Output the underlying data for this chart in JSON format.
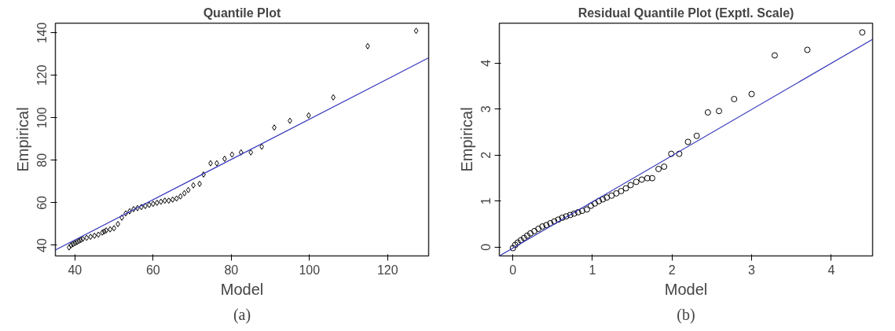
{
  "chart_data": [
    {
      "type": "scatter",
      "title": "Quantile Plot",
      "xlabel": "Model",
      "ylabel": "Empirical",
      "annotations": [
        "(a)"
      ],
      "xlim": [
        35,
        130.5
      ],
      "ylim": [
        35,
        144.5
      ],
      "xticks": [
        40,
        60,
        80,
        100,
        120
      ],
      "yticks": [
        40,
        60,
        80,
        100,
        120,
        140
      ],
      "grid": false,
      "series": [
        {
          "marker": "diamond",
          "color": "#000000",
          "x": [
            38.5,
            39,
            39.5,
            40,
            40.5,
            41,
            41.5,
            42,
            43,
            44,
            45,
            46,
            47,
            47.5,
            48,
            49,
            50,
            51,
            52,
            53,
            54,
            55,
            56,
            57,
            58,
            59,
            60,
            61,
            62,
            63,
            64,
            65,
            66,
            67,
            68,
            69,
            70.3,
            71.9,
            72.9,
            74.7,
            76.3,
            78.3,
            80.2,
            82.5,
            85.0,
            87.8,
            91.0,
            95.0,
            99.8,
            106.1,
            114.9,
            127.3
          ],
          "values": [
            39,
            40,
            40.5,
            41,
            41.5,
            42,
            42.5,
            43,
            43.5,
            44,
            44.5,
            45,
            46,
            46.5,
            47,
            47.5,
            48,
            50,
            53,
            55,
            56,
            57,
            57.5,
            58,
            58.5,
            59,
            59.5,
            60,
            60.5,
            61,
            61,
            61.5,
            62,
            63,
            64.5,
            66,
            68.2,
            68.9,
            73.3,
            78.6,
            78.6,
            80.7,
            82.7,
            83.7,
            83.7,
            86.4,
            95.4,
            98.6,
            101.1,
            109.6,
            133.7,
            140.9
          ]
        },
        {
          "type": "line",
          "color": "#3333bb",
          "x": [
            35,
            130.5
          ],
          "values": [
            37.8,
            128.2
          ]
        }
      ]
    },
    {
      "type": "scatter",
      "title": "Residual Quantile Plot (Exptl. Scale)",
      "xlabel": "Model",
      "ylabel": "Empirical",
      "annotations": [
        "(b)"
      ],
      "xlim": [
        -0.17,
        4.52
      ],
      "ylim": [
        -0.19,
        4.87
      ],
      "xticks": [
        0,
        1,
        2,
        3,
        4
      ],
      "yticks": [
        0,
        1,
        2,
        3,
        4
      ],
      "grid": false,
      "series": [
        {
          "marker": "circle",
          "color": "#000000",
          "x": [
            0,
            0.03,
            0.06,
            0.1,
            0.14,
            0.18,
            0.22,
            0.27,
            0.32,
            0.37,
            0.42,
            0.47,
            0.52,
            0.57,
            0.62,
            0.67,
            0.72,
            0.77,
            0.82,
            0.87,
            0.93,
            0.98,
            1.03,
            1.08,
            1.13,
            1.18,
            1.24,
            1.3,
            1.36,
            1.42,
            1.48,
            1.55,
            1.62,
            1.69,
            1.75,
            1.83,
            1.9,
            1.99,
            2.09,
            2.2,
            2.31,
            2.45,
            2.59,
            2.78,
            3.0,
            3.29,
            3.7,
            4.39
          ],
          "values": [
            -0.02,
            0.05,
            0.1,
            0.15,
            0.2,
            0.25,
            0.3,
            0.35,
            0.4,
            0.45,
            0.48,
            0.52,
            0.56,
            0.6,
            0.64,
            0.67,
            0.7,
            0.73,
            0.76,
            0.79,
            0.82,
            0.9,
            0.95,
            1.0,
            1.04,
            1.08,
            1.12,
            1.17,
            1.22,
            1.28,
            1.35,
            1.42,
            1.47,
            1.5,
            1.5,
            1.7,
            1.75,
            2.03,
            2.03,
            2.29,
            2.42,
            2.93,
            2.96,
            3.22,
            3.33,
            4.17,
            4.29,
            4.67
          ]
        },
        {
          "type": "line",
          "color": "#3333bb",
          "x": [
            -0.17,
            4.52
          ],
          "values": [
            -0.19,
            4.52
          ]
        }
      ]
    }
  ]
}
